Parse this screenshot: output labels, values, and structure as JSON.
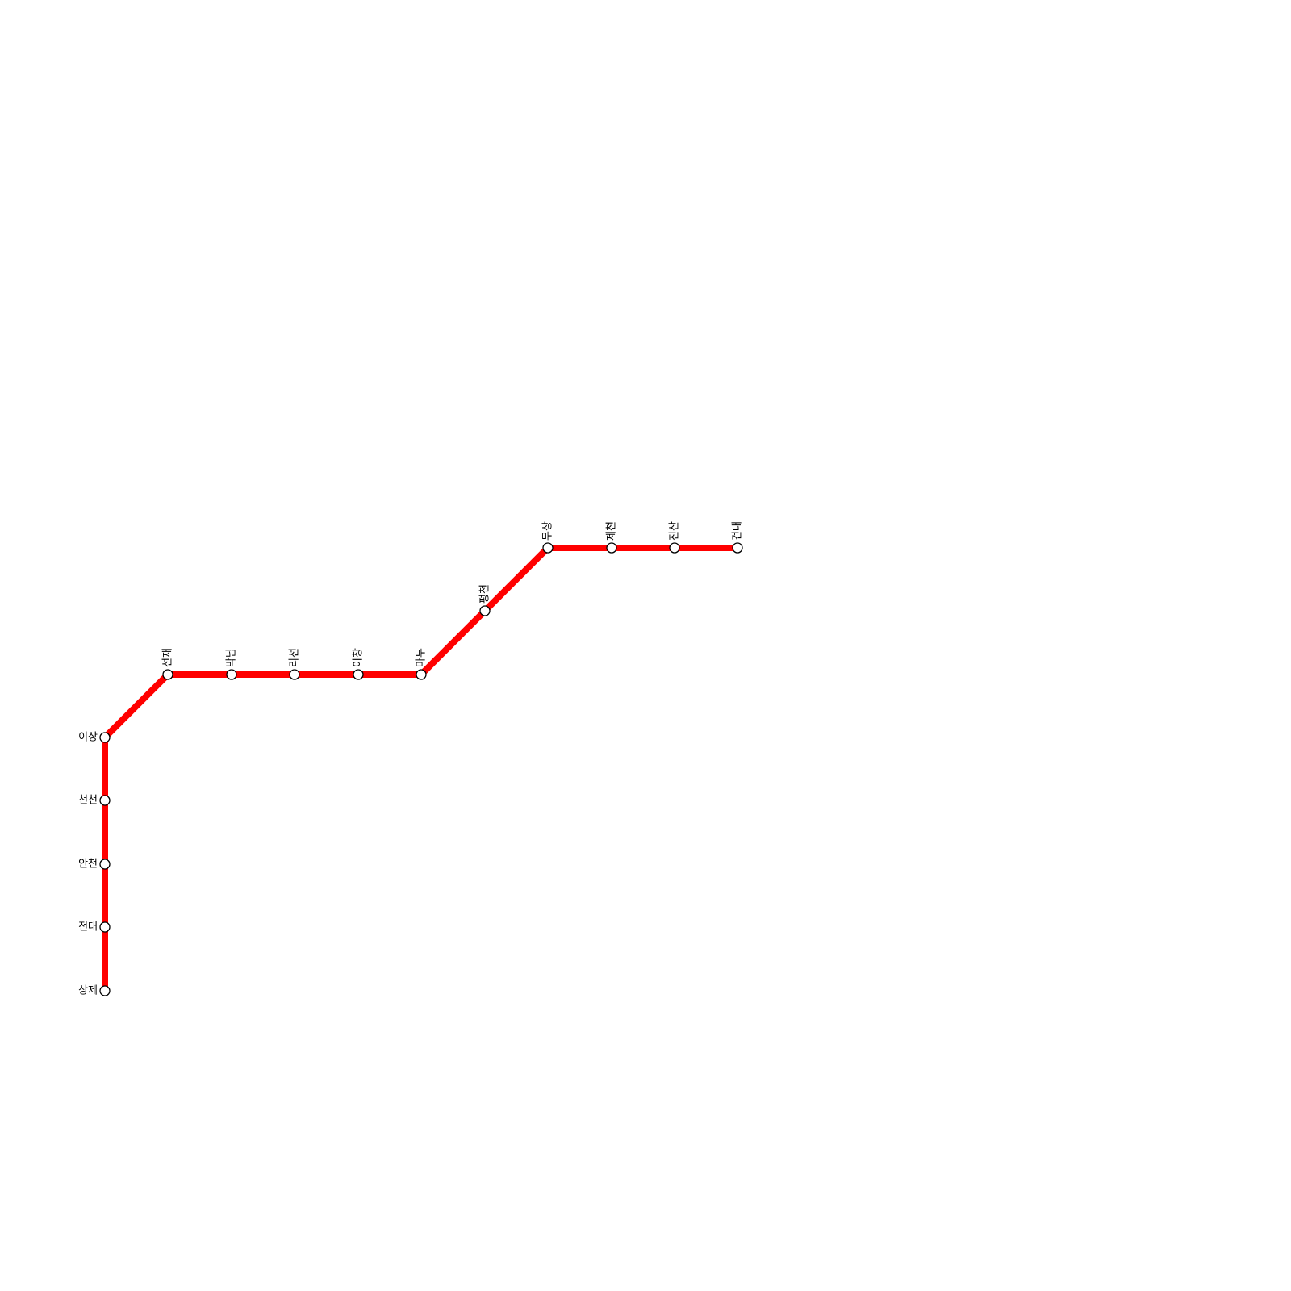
{
  "stations": [
    {
      "label": "상제"
    },
    {
      "label": "전대"
    },
    {
      "label": "안천"
    },
    {
      "label": "천천"
    },
    {
      "label": "이상"
    },
    {
      "label": "선재"
    },
    {
      "label": "박남"
    },
    {
      "label": "리선"
    },
    {
      "label": "이창"
    },
    {
      "label": "마두"
    },
    {
      "label": "평천"
    },
    {
      "label": "무상"
    },
    {
      "label": "제천"
    },
    {
      "label": "진산"
    },
    {
      "label": "건대"
    }
  ]
}
